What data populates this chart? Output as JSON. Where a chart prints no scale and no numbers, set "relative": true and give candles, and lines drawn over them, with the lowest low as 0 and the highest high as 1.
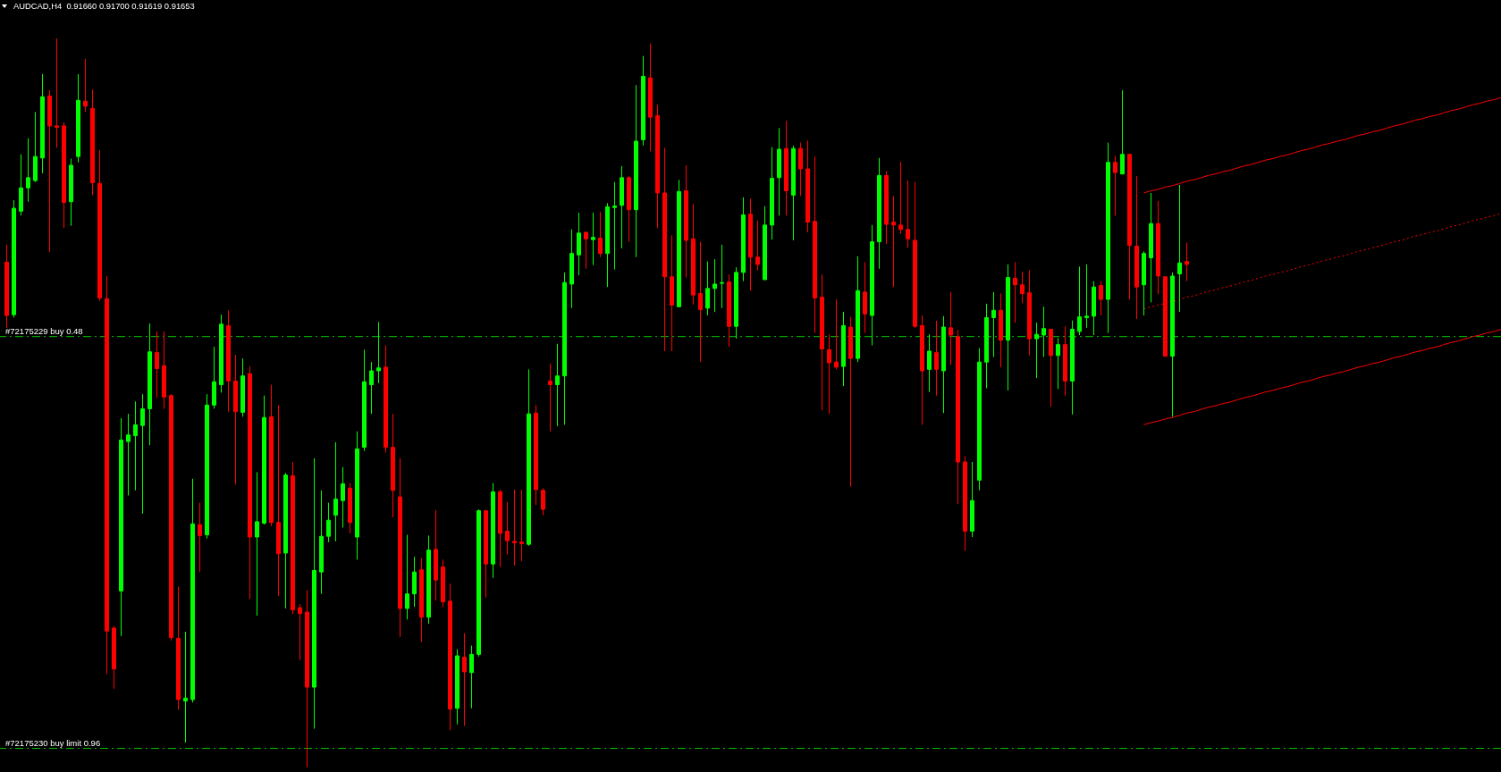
{
  "chart_data": {
    "type": "candlestick",
    "title": "AUDCAD,H4  0.91660 0.91700 0.91619 0.91653",
    "relative": true,
    "categories": [
      null,
      null,
      null,
      null,
      null,
      null,
      null,
      null,
      null,
      null,
      null,
      null,
      null,
      null,
      null,
      null,
      null,
      null,
      null,
      null,
      null,
      null,
      null,
      null,
      null,
      null,
      null,
      null,
      null,
      null,
      null,
      null,
      null,
      null,
      null,
      null,
      null,
      null,
      null,
      null,
      null,
      null,
      null,
      null,
      null,
      null,
      null,
      null,
      null,
      null,
      null,
      null,
      null,
      null,
      null,
      null,
      null,
      null,
      null,
      null,
      null,
      null,
      null,
      null,
      null,
      null,
      null,
      null,
      null,
      null,
      null,
      null,
      null,
      null,
      null,
      null,
      null,
      null,
      null,
      null,
      null,
      null,
      null,
      null,
      null,
      null,
      null,
      null,
      null,
      null,
      null,
      null,
      null,
      null,
      null,
      null,
      null,
      null,
      null,
      null,
      null,
      null,
      null,
      null,
      null,
      null,
      null,
      null,
      null,
      null,
      null,
      null,
      null,
      null,
      null,
      null,
      null,
      null,
      null,
      null,
      null,
      null,
      null,
      null,
      null,
      null,
      null,
      null,
      null,
      null,
      null,
      null,
      null,
      null,
      null,
      null,
      null,
      null,
      null,
      null,
      null,
      null,
      null,
      null,
      null,
      null,
      null,
      null,
      null,
      null,
      null,
      null,
      null,
      null,
      null,
      null,
      null,
      null,
      null,
      null,
      null,
      null,
      null,
      null,
      null,
      null,
      null,
      null,
      null,
      null,
      null,
      null,
      null,
      null,
      null,
      null,
      null,
      null,
      null,
      null,
      null,
      null,
      null,
      null,
      null,
      null,
      null,
      null,
      null,
      null,
      null,
      null,
      null,
      null,
      null,
      null,
      null,
      null,
      null,
      null,
      null,
      null,
      null,
      null,
      null,
      null,
      null,
      null,
      null,
      null
    ],
    "ohlc": [
      [
        0.693,
        0.717,
        0.603,
        0.62
      ],
      [
        0.621,
        0.778,
        0.617,
        0.767
      ],
      [
        0.763,
        0.841,
        0.757,
        0.795
      ],
      [
        0.795,
        0.863,
        0.776,
        0.809
      ],
      [
        0.805,
        0.899,
        0.803,
        0.838
      ],
      [
        0.836,
        0.951,
        0.815,
        0.92
      ],
      [
        0.921,
        0.929,
        0.707,
        0.88
      ],
      [
        0.88,
        1,
        0.85,
        0.878
      ],
      [
        0.88,
        0.885,
        0.74,
        0.775
      ],
      [
        0.776,
        0.835,
        0.743,
        0.826
      ],
      [
        0.838,
        0.951,
        0.83,
        0.915
      ],
      [
        0.914,
        0.972,
        0.899,
        0.907
      ],
      [
        0.904,
        0.93,
        0.785,
        0.802
      ],
      [
        0.801,
        0.847,
        0.64,
        0.644
      ],
      [
        0.643,
        0.674,
        0.128,
        0.187
      ],
      [
        0.191,
        0.194,
        0.108,
        0.135
      ],
      [
        0.242,
        0.479,
        0.18,
        0.449
      ],
      [
        0.447,
        0.485,
        0.373,
        0.456
      ],
      [
        0.455,
        0.502,
        0.38,
        0.47
      ],
      [
        0.469,
        0.512,
        0.348,
        0.492
      ],
      [
        0.492,
        0.609,
        0.442,
        0.57
      ],
      [
        0.569,
        0.598,
        0.507,
        0.547
      ],
      [
        0.551,
        0.598,
        0.492,
        0.508
      ],
      [
        0.51,
        0.512,
        0.174,
        0.178
      ],
      [
        0.177,
        0.248,
        0.079,
        0.093
      ],
      [
        0.091,
        0.186,
        0.034,
        0.095
      ],
      [
        0.093,
        0.396,
        0.089,
        0.334
      ],
      [
        0.333,
        0.363,
        0.268,
        0.318
      ],
      [
        0.319,
        0.512,
        0.314,
        0.497
      ],
      [
        0.497,
        0.577,
        0.492,
        0.529
      ],
      [
        0.525,
        0.621,
        0.514,
        0.608
      ],
      [
        0.606,
        0.627,
        0.488,
        0.53
      ],
      [
        0.53,
        0.566,
        0.388,
        0.488
      ],
      [
        0.487,
        0.561,
        0.481,
        0.537
      ],
      [
        0.54,
        0.55,
        0.231,
        0.316
      ],
      [
        0.316,
        0.405,
        0.208,
        0.337
      ],
      [
        0.335,
        0.51,
        0.333,
        0.48
      ],
      [
        0.481,
        0.525,
        0.331,
        0.336
      ],
      [
        0.336,
        0.497,
        0.235,
        0.293
      ],
      [
        0.294,
        0.404,
        0.218,
        0.401
      ],
      [
        0.4,
        0.419,
        0.21,
        0.216
      ],
      [
        0.219,
        0.224,
        0.147,
        0.211
      ],
      [
        0.213,
        0.243,
        0,
        0.11
      ],
      [
        0.11,
        0.424,
        0.053,
        0.27
      ],
      [
        0.268,
        0.38,
        0.238,
        0.317
      ],
      [
        0.317,
        0.363,
        0.309,
        0.339
      ],
      [
        0.346,
        0.446,
        0.31,
        0.368
      ],
      [
        0.366,
        0.412,
        0.329,
        0.389
      ],
      [
        0.383,
        0.39,
        0.321,
        0.336
      ],
      [
        0.316,
        0.461,
        0.285,
        0.437
      ],
      [
        0.439,
        0.573,
        0.434,
        0.529
      ],
      [
        0.525,
        0.556,
        0.485,
        0.544
      ],
      [
        0.544,
        0.611,
        0.527,
        0.548
      ],
      [
        0.549,
        0.579,
        0.432,
        0.439
      ],
      [
        0.439,
        0.485,
        0.343,
        0.38
      ],
      [
        0.371,
        0.424,
        0.179,
        0.218
      ],
      [
        0.218,
        0.319,
        0.203,
        0.238
      ],
      [
        0.238,
        0.289,
        0.22,
        0.268
      ],
      [
        0.271,
        0.287,
        0.172,
        0.206
      ],
      [
        0.206,
        0.318,
        0.197,
        0.298
      ],
      [
        0.299,
        0.353,
        0.229,
        0.257
      ],
      [
        0.275,
        0.285,
        0.22,
        0.227
      ],
      [
        0.228,
        0.252,
        0.051,
        0.08
      ],
      [
        0.081,
        0.162,
        0.059,
        0.153
      ],
      [
        0.151,
        0.184,
        0.057,
        0.131
      ],
      [
        0.13,
        0.167,
        0.081,
        0.155
      ],
      [
        0.155,
        0.354,
        0.152,
        0.352
      ],
      [
        0.352,
        0.353,
        0.233,
        0.279
      ],
      [
        0.279,
        0.39,
        0.26,
        0.378
      ],
      [
        0.378,
        0.381,
        0.275,
        0.321
      ],
      [
        0.324,
        0.364,
        0.292,
        0.311
      ],
      [
        0.31,
        0.381,
        0.277,
        0.308
      ],
      [
        0.309,
        0.381,
        0.283,
        0.307
      ],
      [
        0.306,
        0.546,
        0.304,
        0.485
      ],
      [
        0.486,
        0.497,
        0.36,
        0.381
      ],
      [
        0.38,
        0.383,
        0.346,
        0.354
      ],
      [
        0.53,
        0.554,
        0.461,
        0.525
      ],
      [
        0.525,
        0.581,
        0.468,
        0.537
      ],
      [
        0.537,
        0.679,
        0.47,
        0.665
      ],
      [
        0.663,
        0.738,
        0.63,
        0.705
      ],
      [
        0.703,
        0.761,
        0.675,
        0.733
      ],
      [
        0.734,
        0.735,
        0.684,
        0.725
      ],
      [
        0.724,
        0.761,
        0.689,
        0.727
      ],
      [
        0.726,
        0.762,
        0.7,
        0.705
      ],
      [
        0.705,
        0.774,
        0.659,
        0.769
      ],
      [
        0.768,
        0.803,
        0.683,
        0.77
      ],
      [
        0.771,
        0.825,
        0.712,
        0.809
      ],
      [
        0.809,
        0.811,
        0.721,
        0.765
      ],
      [
        0.765,
        0.936,
        0.7,
        0.859
      ],
      [
        0.861,
        0.976,
        0.853,
        0.948
      ],
      [
        0.946,
        0.993,
        0.845,
        0.892
      ],
      [
        0.894,
        0.909,
        0.74,
        0.788
      ],
      [
        0.788,
        0.85,
        0.571,
        0.673
      ],
      [
        0.673,
        0.73,
        0.571,
        0.634
      ],
      [
        0.632,
        0.806,
        0.631,
        0.79
      ],
      [
        0.791,
        0.826,
        0.672,
        0.723
      ],
      [
        0.725,
        0.773,
        0.635,
        0.648
      ],
      [
        0.65,
        0.721,
        0.556,
        0.628
      ],
      [
        0.63,
        0.694,
        0.62,
        0.657
      ],
      [
        0.657,
        0.697,
        0.625,
        0.663
      ],
      [
        0.664,
        0.717,
        0.63,
        0.665
      ],
      [
        0.666,
        0.676,
        0.577,
        0.605
      ],
      [
        0.605,
        0.686,
        0.588,
        0.679
      ],
      [
        0.679,
        0.782,
        0.667,
        0.758
      ],
      [
        0.759,
        0.78,
        0.654,
        0.7
      ],
      [
        0.7,
        0.75,
        0.682,
        0.69
      ],
      [
        0.669,
        0.77,
        0.669,
        0.744
      ],
      [
        0.744,
        0.851,
        0.724,
        0.808
      ],
      [
        0.809,
        0.877,
        0.757,
        0.848
      ],
      [
        0.849,
        0.887,
        0.757,
        0.791
      ],
      [
        0.785,
        0.853,
        0.723,
        0.849
      ],
      [
        0.849,
        0.857,
        0.784,
        0.821
      ],
      [
        0.821,
        0.86,
        0.734,
        0.748
      ],
      [
        0.749,
        0.838,
        0.596,
        0.644
      ],
      [
        0.645,
        0.676,
        0.49,
        0.574
      ],
      [
        0.573,
        0.594,
        0.485,
        0.555
      ],
      [
        0.556,
        0.642,
        0.546,
        0.549
      ],
      [
        0.55,
        0.625,
        0.523,
        0.606
      ],
      [
        0.604,
        0.618,
        0.385,
        0.561
      ],
      [
        0.561,
        0.701,
        0.556,
        0.654
      ],
      [
        0.652,
        0.693,
        0.596,
        0.622
      ],
      [
        0.62,
        0.744,
        0.579,
        0.721
      ],
      [
        0.721,
        0.836,
        0.684,
        0.812
      ],
      [
        0.812,
        0.818,
        0.718,
        0.745
      ],
      [
        0.748,
        0.784,
        0.659,
        0.744
      ],
      [
        0.744,
        0.831,
        0.732,
        0.738
      ],
      [
        0.738,
        0.805,
        0.713,
        0.725
      ],
      [
        0.723,
        0.803,
        0.603,
        0.605
      ],
      [
        0.606,
        0.62,
        0.47,
        0.544
      ],
      [
        0.546,
        0.594,
        0.515,
        0.571
      ],
      [
        0.569,
        0.613,
        0.51,
        0.546
      ],
      [
        0.544,
        0.619,
        0.486,
        0.604
      ],
      [
        0.603,
        0.652,
        0.552,
        0.593
      ],
      [
        0.591,
        0.6,
        0.361,
        0.419
      ],
      [
        0.419,
        0.427,
        0.297,
        0.324
      ],
      [
        0.324,
        0.419,
        0.316,
        0.366
      ],
      [
        0.394,
        0.575,
        0.38,
        0.556
      ],
      [
        0.556,
        0.636,
        0.52,
        0.617
      ],
      [
        0.617,
        0.652,
        0.563,
        0.627
      ],
      [
        0.627,
        0.65,
        0.549,
        0.586
      ],
      [
        0.586,
        0.69,
        0.517,
        0.672
      ],
      [
        0.671,
        0.693,
        0.61,
        0.662
      ],
      [
        0.662,
        0.68,
        0.637,
        0.65
      ],
      [
        0.651,
        0.682,
        0.565,
        0.588
      ],
      [
        0.588,
        0.61,
        0.534,
        0.594
      ],
      [
        0.593,
        0.632,
        0.563,
        0.602
      ],
      [
        0.601,
        0.601,
        0.495,
        0.565
      ],
      [
        0.565,
        0.589,
        0.519,
        0.58
      ],
      [
        0.58,
        0.605,
        0.51,
        0.53
      ],
      [
        0.53,
        0.613,
        0.484,
        0.601
      ],
      [
        0.598,
        0.687,
        0.593,
        0.618
      ],
      [
        0.617,
        0.69,
        0.603,
        0.619
      ],
      [
        0.619,
        0.667,
        0.593,
        0.659
      ],
      [
        0.661,
        0.667,
        0.62,
        0.642
      ],
      [
        0.642,
        0.857,
        0.596,
        0.83
      ],
      [
        0.83,
        0.839,
        0.757,
        0.816
      ],
      [
        0.814,
        0.929,
        0.814,
        0.841
      ],
      [
        0.841,
        0.841,
        0.642,
        0.716
      ],
      [
        0.715,
        0.811,
        0.615,
        0.659
      ],
      [
        0.662,
        0.708,
        0.62,
        0.705
      ],
      [
        0.699,
        0.788,
        0.638,
        0.746
      ],
      [
        0.746,
        0.777,
        0.649,
        0.674
      ],
      [
        0.673,
        0.674,
        0.564,
        0.564
      ],
      [
        0.564,
        0.679,
        0.481,
        0.674
      ],
      [
        0.677,
        0.799,
        0.625,
        0.692
      ],
      [
        0.694,
        0.72,
        0.667,
        0.69
      ],
      null,
      null,
      null,
      null,
      null,
      null,
      null,
      null,
      null,
      null,
      null,
      null,
      null,
      null,
      null,
      null,
      null,
      null,
      null,
      null,
      null,
      null,
      null,
      null,
      null,
      null,
      null,
      null,
      null,
      null,
      null,
      null,
      null,
      null,
      null,
      null,
      null,
      null,
      null,
      null,
      null,
      null,
      null,
      null
    ],
    "colors": [
      "#ff0000",
      "#00ff00",
      "#00ff00",
      "#00ff00",
      "#00ff00",
      "#00ff00",
      "#ff0000",
      "#ff0000",
      "#ff0000",
      "#00ff00",
      "#00ff00",
      "#ff0000",
      "#ff0000",
      "#ff0000",
      "#ff0000",
      "#ff0000",
      "#00ff00",
      "#00ff00",
      "#00ff00",
      "#00ff00",
      "#00ff00",
      "#ff0000",
      "#ff0000",
      "#ff0000",
      "#ff0000",
      "#00ff00",
      "#00ff00",
      "#ff0000",
      "#00ff00",
      "#00ff00",
      "#00ff00",
      "#ff0000",
      "#ff0000",
      "#00ff00",
      "#ff0000",
      "#00ff00",
      "#00ff00",
      "#ff0000",
      "#ff0000",
      "#00ff00",
      "#ff0000",
      "#ff0000",
      "#ff0000",
      "#00ff00",
      "#00ff00",
      "#00ff00",
      "#00ff00",
      "#00ff00",
      "#ff0000",
      "#00ff00",
      "#00ff00",
      "#00ff00",
      "#00ff00",
      "#ff0000",
      "#ff0000",
      "#ff0000",
      "#00ff00",
      "#00ff00",
      "#ff0000",
      "#00ff00",
      "#ff0000",
      "#ff0000",
      "#ff0000",
      "#00ff00",
      "#ff0000",
      "#00ff00",
      "#00ff00",
      "#ff0000",
      "#00ff00",
      "#ff0000",
      "#ff0000",
      "#ff0000",
      "#ff0000",
      "#00ff00",
      "#ff0000",
      "#ff0000",
      "#ff0000",
      "#00ff00",
      "#00ff00",
      "#00ff00",
      "#00ff00",
      "#ff0000",
      "#00ff00",
      "#ff0000",
      "#00ff00",
      "#00ff00",
      "#00ff00",
      "#ff0000",
      "#00ff00",
      "#00ff00",
      "#ff0000",
      "#ff0000",
      "#ff0000",
      "#ff0000",
      "#00ff00",
      "#ff0000",
      "#ff0000",
      "#ff0000",
      "#00ff00",
      "#00ff00",
      "#00ff00",
      "#ff0000",
      "#00ff00",
      "#00ff00",
      "#ff0000",
      "#ff0000",
      "#00ff00",
      "#00ff00",
      "#00ff00",
      "#ff0000",
      "#00ff00",
      "#ff0000",
      "#ff0000",
      "#ff0000",
      "#ff0000",
      "#ff0000",
      "#ff0000",
      "#00ff00",
      "#ff0000",
      "#00ff00",
      "#ff0000",
      "#00ff00",
      "#00ff00",
      "#ff0000",
      "#ff0000",
      "#ff0000",
      "#ff0000",
      "#ff0000",
      "#ff0000",
      "#00ff00",
      "#ff0000",
      "#00ff00",
      "#ff0000",
      "#ff0000",
      "#ff0000",
      "#00ff00",
      "#00ff00",
      "#00ff00",
      "#00ff00",
      "#ff0000",
      "#00ff00",
      "#ff0000",
      "#ff0000",
      "#ff0000",
      "#00ff00",
      "#00ff00",
      "#ff0000",
      "#00ff00",
      "#ff0000",
      "#00ff00",
      "#00ff00",
      "#00ff00",
      "#00ff00",
      "#ff0000",
      "#00ff00",
      "#ff0000",
      "#00ff00",
      "#ff0000",
      "#ff0000",
      "#00ff00",
      "#00ff00",
      "#ff0000",
      "#ff0000",
      "#00ff00",
      "#00ff00",
      "#ff0000",
      null,
      null,
      null,
      null,
      null,
      null,
      null,
      null,
      null,
      null,
      null,
      null,
      null,
      null,
      null,
      null,
      null,
      null,
      null,
      null,
      null,
      null,
      null,
      null,
      null,
      null,
      null,
      null,
      null,
      null,
      null,
      null,
      null,
      null,
      null,
      null,
      null,
      null,
      null,
      null,
      null,
      null,
      null,
      null
    ],
    "series": [
      {
        "type": "line",
        "color": "#ff0000",
        "values": [
          null,
          null,
          null,
          null,
          null,
          null,
          null,
          null,
          null,
          null,
          null,
          null,
          null,
          null,
          null,
          null,
          null,
          null,
          null,
          null,
          null,
          null,
          null,
          null,
          null,
          null,
          null,
          null,
          null,
          null,
          null,
          null,
          null,
          null,
          null,
          null,
          null,
          null,
          null,
          null,
          null,
          null,
          null,
          null,
          null,
          null,
          null,
          null,
          null,
          null,
          null,
          null,
          null,
          null,
          null,
          null,
          null,
          null,
          null,
          null,
          null,
          null,
          null,
          null,
          null,
          null,
          null,
          null,
          null,
          null,
          null,
          null,
          null,
          null,
          null,
          null,
          null,
          null,
          null,
          null,
          null,
          null,
          null,
          null,
          null,
          null,
          null,
          null,
          null,
          null,
          null,
          null,
          null,
          null,
          null,
          null,
          null,
          null,
          null,
          null,
          null,
          null,
          null,
          null,
          null,
          null,
          null,
          null,
          null,
          null,
          null,
          null,
          null,
          null,
          null,
          null,
          null,
          null,
          null,
          null,
          null,
          null,
          null,
          null,
          null,
          null,
          null,
          null,
          null,
          null,
          null,
          null,
          null,
          null,
          null,
          null,
          null,
          null,
          null,
          null,
          null,
          null,
          null,
          null,
          null,
          null,
          null,
          null,
          null,
          null,
          null,
          null,
          null,
          null,
          null,
          null,
          null,
          null,
          null,
          0.788,
          0.791,
          0.793,
          0.796,
          0.798,
          0.801,
          0.804,
          0.806,
          0.809,
          0.812,
          0.814,
          0.817,
          0.819,
          0.822,
          0.825,
          0.827,
          0.83,
          0.833,
          0.835,
          0.838,
          0.84,
          0.843,
          0.846,
          0.848,
          0.851,
          0.854,
          0.856,
          0.859,
          0.861,
          0.864,
          0.867,
          0.869,
          0.872,
          0.874,
          0.877,
          0.88,
          0.882,
          0.885,
          0.888,
          0.89,
          0.893,
          0.895,
          0.898,
          0.901,
          0.903,
          0.906,
          0.909,
          0.911,
          0.914,
          0.916,
          0.919
        ]
      },
      {
        "type": "line",
        "color": "#ff0000",
        "line_style": "dotted",
        "values": [
          null,
          null,
          null,
          null,
          null,
          null,
          null,
          null,
          null,
          null,
          null,
          null,
          null,
          null,
          null,
          null,
          null,
          null,
          null,
          null,
          null,
          null,
          null,
          null,
          null,
          null,
          null,
          null,
          null,
          null,
          null,
          null,
          null,
          null,
          null,
          null,
          null,
          null,
          null,
          null,
          null,
          null,
          null,
          null,
          null,
          null,
          null,
          null,
          null,
          null,
          null,
          null,
          null,
          null,
          null,
          null,
          null,
          null,
          null,
          null,
          null,
          null,
          null,
          null,
          null,
          null,
          null,
          null,
          null,
          null,
          null,
          null,
          null,
          null,
          null,
          null,
          null,
          null,
          null,
          null,
          null,
          null,
          null,
          null,
          null,
          null,
          null,
          null,
          null,
          null,
          null,
          null,
          null,
          null,
          null,
          null,
          null,
          null,
          null,
          null,
          null,
          null,
          null,
          null,
          null,
          null,
          null,
          null,
          null,
          null,
          null,
          null,
          null,
          null,
          null,
          null,
          null,
          null,
          null,
          null,
          null,
          null,
          null,
          null,
          null,
          null,
          null,
          null,
          null,
          null,
          null,
          null,
          null,
          null,
          null,
          null,
          null,
          null,
          null,
          null,
          null,
          null,
          null,
          null,
          null,
          null,
          null,
          null,
          null,
          null,
          null,
          null,
          null,
          null,
          null,
          null,
          null,
          null,
          null,
          0.629,
          0.632,
          0.634,
          0.637,
          0.639,
          0.642,
          0.645,
          0.647,
          0.65,
          0.653,
          0.655,
          0.658,
          0.66,
          0.663,
          0.666,
          0.668,
          0.671,
          0.674,
          0.676,
          0.679,
          0.681,
          0.684,
          0.687,
          0.689,
          0.692,
          0.695,
          0.697,
          0.7,
          0.702,
          0.705,
          0.708,
          0.71,
          0.713,
          0.715,
          0.718,
          0.721,
          0.723,
          0.726,
          0.729,
          0.731,
          0.734,
          0.736,
          0.739,
          0.742,
          0.744,
          0.747,
          0.75,
          0.752,
          0.755,
          0.757,
          0.76
        ]
      },
      {
        "type": "line",
        "color": "#ff0000",
        "values": [
          null,
          null,
          null,
          null,
          null,
          null,
          null,
          null,
          null,
          null,
          null,
          null,
          null,
          null,
          null,
          null,
          null,
          null,
          null,
          null,
          null,
          null,
          null,
          null,
          null,
          null,
          null,
          null,
          null,
          null,
          null,
          null,
          null,
          null,
          null,
          null,
          null,
          null,
          null,
          null,
          null,
          null,
          null,
          null,
          null,
          null,
          null,
          null,
          null,
          null,
          null,
          null,
          null,
          null,
          null,
          null,
          null,
          null,
          null,
          null,
          null,
          null,
          null,
          null,
          null,
          null,
          null,
          null,
          null,
          null,
          null,
          null,
          null,
          null,
          null,
          null,
          null,
          null,
          null,
          null,
          null,
          null,
          null,
          null,
          null,
          null,
          null,
          null,
          null,
          null,
          null,
          null,
          null,
          null,
          null,
          null,
          null,
          null,
          null,
          null,
          null,
          null,
          null,
          null,
          null,
          null,
          null,
          null,
          null,
          null,
          null,
          null,
          null,
          null,
          null,
          null,
          null,
          null,
          null,
          null,
          null,
          null,
          null,
          null,
          null,
          null,
          null,
          null,
          null,
          null,
          null,
          null,
          null,
          null,
          null,
          null,
          null,
          null,
          null,
          null,
          null,
          null,
          null,
          null,
          null,
          null,
          null,
          null,
          null,
          null,
          null,
          null,
          null,
          null,
          null,
          null,
          null,
          null,
          null,
          0.47,
          0.473,
          0.475,
          0.478,
          0.48,
          0.483,
          0.486,
          0.488,
          0.491,
          0.494,
          0.496,
          0.499,
          0.501,
          0.504,
          0.507,
          0.509,
          0.512,
          0.515,
          0.517,
          0.52,
          0.522,
          0.525,
          0.528,
          0.53,
          0.533,
          0.536,
          0.538,
          0.541,
          0.543,
          0.546,
          0.549,
          0.551,
          0.554,
          0.556,
          0.559,
          0.562,
          0.564,
          0.567,
          0.57,
          0.572,
          0.575,
          0.577,
          0.58,
          0.583,
          0.585,
          0.588,
          0.591,
          0.593,
          0.596,
          0.598,
          0.601
        ]
      }
    ],
    "ref_lines": [
      {
        "axis": "y",
        "value": 0.591,
        "label": "#72175229 buy 0.48",
        "color": "#00c800",
        "line_style": "dashed"
      },
      {
        "axis": "y",
        "value": 0.026,
        "label": "#72175230 buy limit 0.96",
        "color": "#00c800",
        "line_style": "dashed"
      }
    ]
  }
}
